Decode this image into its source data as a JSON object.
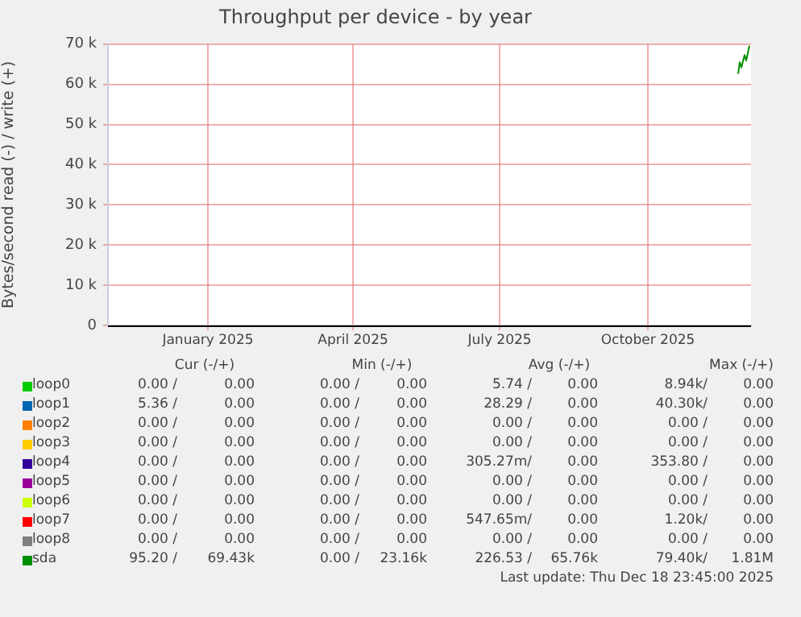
{
  "chart_data": {
    "type": "line",
    "title": "Throughput per device - by year",
    "ylabel": "Bytes/second read (-) / write (+)",
    "xlim": [
      "2024-11-15",
      "2025-12-19"
    ],
    "xticks": [
      {
        "value": "2025-01-16",
        "label": "January 2025"
      },
      {
        "value": "2025-04-16",
        "label": "April 2025"
      },
      {
        "value": "2025-07-16",
        "label": "July 2025"
      },
      {
        "value": "2025-10-16",
        "label": "October 2025"
      }
    ],
    "ylim": [
      0,
      70000
    ],
    "yticks": [
      0,
      {
        "value": 10000,
        "label": "10 k"
      },
      {
        "value": 20000,
        "label": "20 k"
      },
      {
        "value": 30000,
        "label": "30 k"
      },
      {
        "value": 40000,
        "label": "40 k"
      },
      {
        "value": 50000,
        "label": "50 k"
      },
      {
        "value": 60000,
        "label": "60 k"
      },
      {
        "value": 70000,
        "label": "70 k"
      }
    ],
    "grid": true,
    "legend": "bottom",
    "marker": "none",
    "line_style": "solid",
    "series": [
      {
        "name": "loop0",
        "color": "#00cc00"
      },
      {
        "name": "loop1",
        "color": "#0066b3"
      },
      {
        "name": "loop2",
        "color": "#ff8000"
      },
      {
        "name": "loop3",
        "color": "#ffcc00"
      },
      {
        "name": "loop4",
        "color": "#330099"
      },
      {
        "name": "loop5",
        "color": "#990099"
      },
      {
        "name": "loop6",
        "color": "#ccff00"
      },
      {
        "name": "loop7",
        "color": "#ff0000"
      },
      {
        "name": "loop8",
        "color": "#808080"
      },
      {
        "name": "sda",
        "color": "#008f00",
        "x": [
          "2025-12-11",
          "2025-12-12",
          "2025-12-13",
          "2025-12-15",
          "2025-12-16",
          "2025-12-18"
        ],
        "values": [
          62600,
          65500,
          64200,
          67300,
          65900,
          69600
        ]
      }
    ],
    "annotations": [
      "Cur (-/+)",
      "Min (-/+)",
      "Avg (-/+)",
      "Max (-/+)",
      "0.00 /",
      "0.00",
      "0.00 /",
      "0.00",
      "5.74 /",
      "0.00",
      "8.94k/",
      "0.00",
      "5.36 /",
      "0.00",
      "0.00 /",
      "0.00",
      "28.29 /",
      "0.00",
      "40.30k/",
      "0.00",
      "0.00 /",
      "0.00",
      "0.00 /",
      "0.00",
      "0.00 /",
      "0.00",
      "0.00 /",
      "0.00",
      "0.00 /",
      "0.00",
      "0.00 /",
      "0.00",
      "0.00 /",
      "0.00",
      "0.00 /",
      "0.00",
      "0.00 /",
      "0.00",
      "0.00 /",
      "0.00",
      "305.27m/",
      "0.00",
      "353.80 /",
      "0.00",
      "0.00 /",
      "0.00",
      "0.00 /",
      "0.00",
      "0.00 /",
      "0.00",
      "0.00 /",
      "0.00",
      "0.00 /",
      "0.00",
      "0.00 /",
      "0.00",
      "0.00 /",
      "0.00",
      "0.00 /",
      "0.00",
      "0.00 /",
      "0.00",
      "0.00 /",
      "0.00",
      "547.65m/",
      "0.00",
      "1.20k/",
      "0.00",
      "0.00 /",
      "0.00",
      "0.00 /",
      "0.00",
      "0.00 /",
      "0.00",
      "0.00 /",
      "0.00",
      "95.20 /",
      "69.43k",
      "0.00 /",
      "23.16k",
      "226.53 /",
      "65.76k",
      "79.40k/",
      "1.81M",
      "Last update: Thu Dec 18 23:45:00 2025"
    ]
  }
}
